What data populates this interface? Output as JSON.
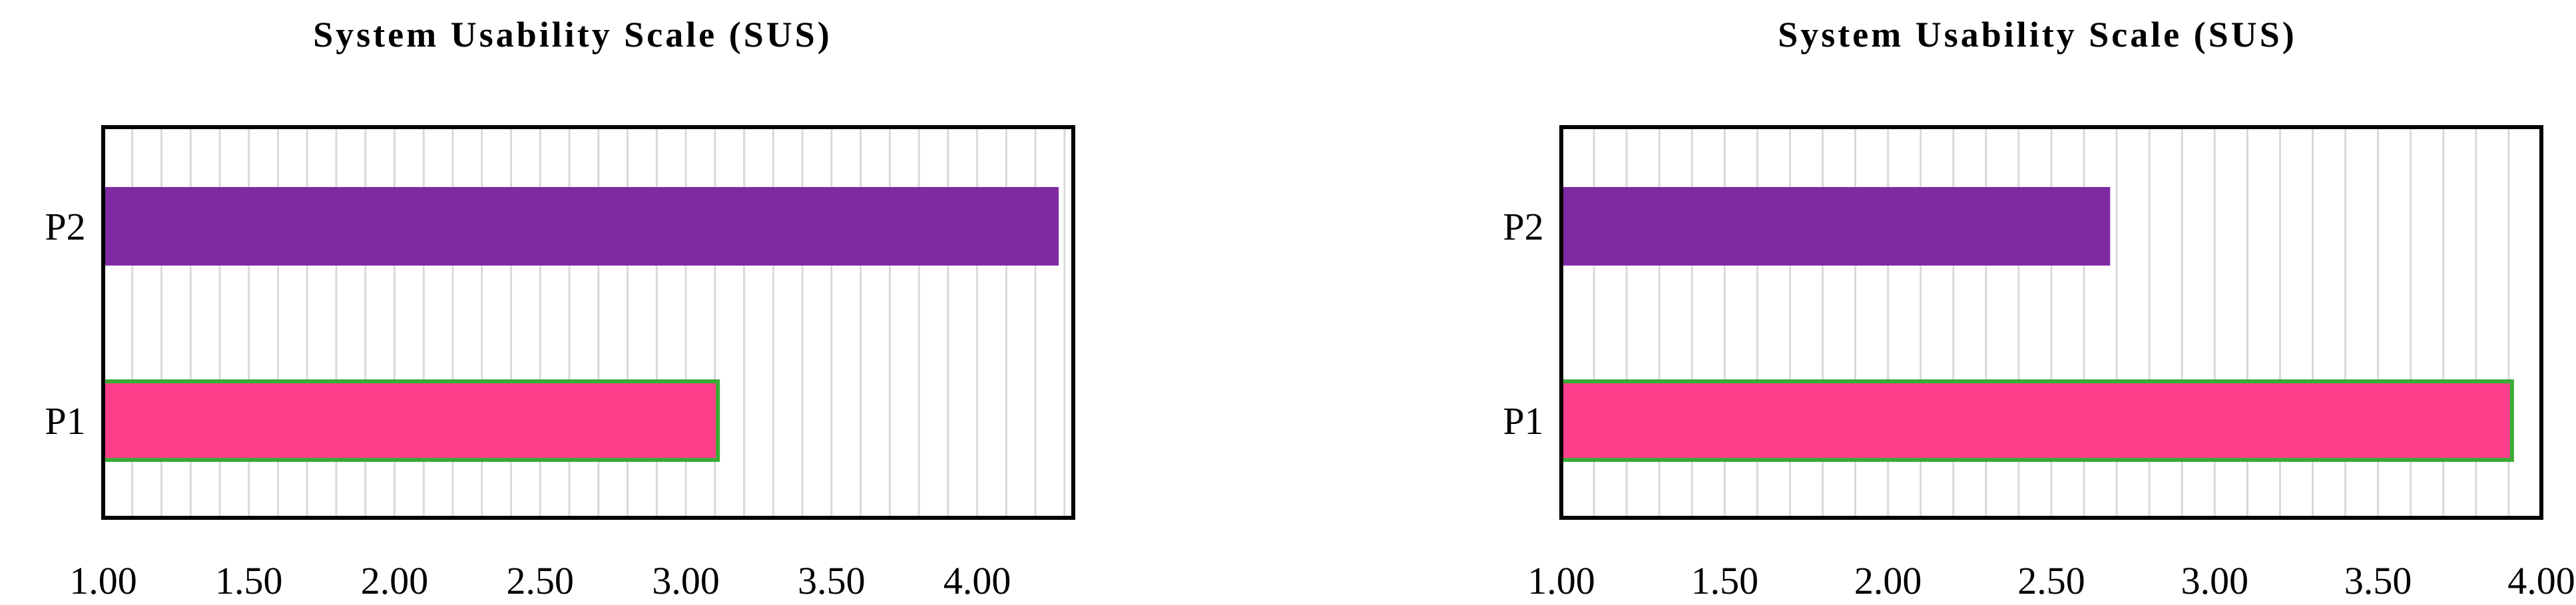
{
  "chart_data": [
    {
      "type": "bar",
      "orientation": "horizontal",
      "title": "System Usability Scale (SUS)",
      "xlabel": "",
      "ylabel": "",
      "categories": [
        "P1",
        "P2"
      ],
      "values": [
        3.11,
        4.28
      ],
      "xlim": [
        1.0,
        4.33
      ],
      "ticks": [
        "1.00",
        "1.50",
        "2.00",
        "2.50",
        "3.00",
        "3.50",
        "4.00"
      ],
      "tick_values": [
        1.0,
        1.5,
        2.0,
        2.5,
        3.0,
        3.5,
        4.0
      ],
      "minor_grid_step": 0.1,
      "grid": true,
      "legend": "none",
      "colors": {
        "P1": "#ff3f8c",
        "P2": "#7f2aa2",
        "P1_border": "#3aaa35",
        "grid": "#d9d9d9",
        "frame": "#000000"
      }
    },
    {
      "type": "bar",
      "orientation": "horizontal",
      "title": "System Usability Scale (SUS)",
      "xlabel": "",
      "ylabel": "",
      "categories": [
        "P1",
        "P2"
      ],
      "values": [
        3.91,
        2.68
      ],
      "xlim": [
        1.0,
        4.0
      ],
      "ticks": [
        "1.00",
        "1.50",
        "2.00",
        "2.50",
        "3.00",
        "3.50",
        "4.00"
      ],
      "tick_values": [
        1.0,
        1.5,
        2.0,
        2.5,
        3.0,
        3.5,
        4.0
      ],
      "minor_grid_step": 0.1,
      "grid": true,
      "legend": "none",
      "colors": {
        "P1": "#ff3f8c",
        "P2": "#7f2aa2",
        "P1_border": "#3aaa35",
        "grid": "#d9d9d9",
        "frame": "#000000"
      }
    }
  ]
}
